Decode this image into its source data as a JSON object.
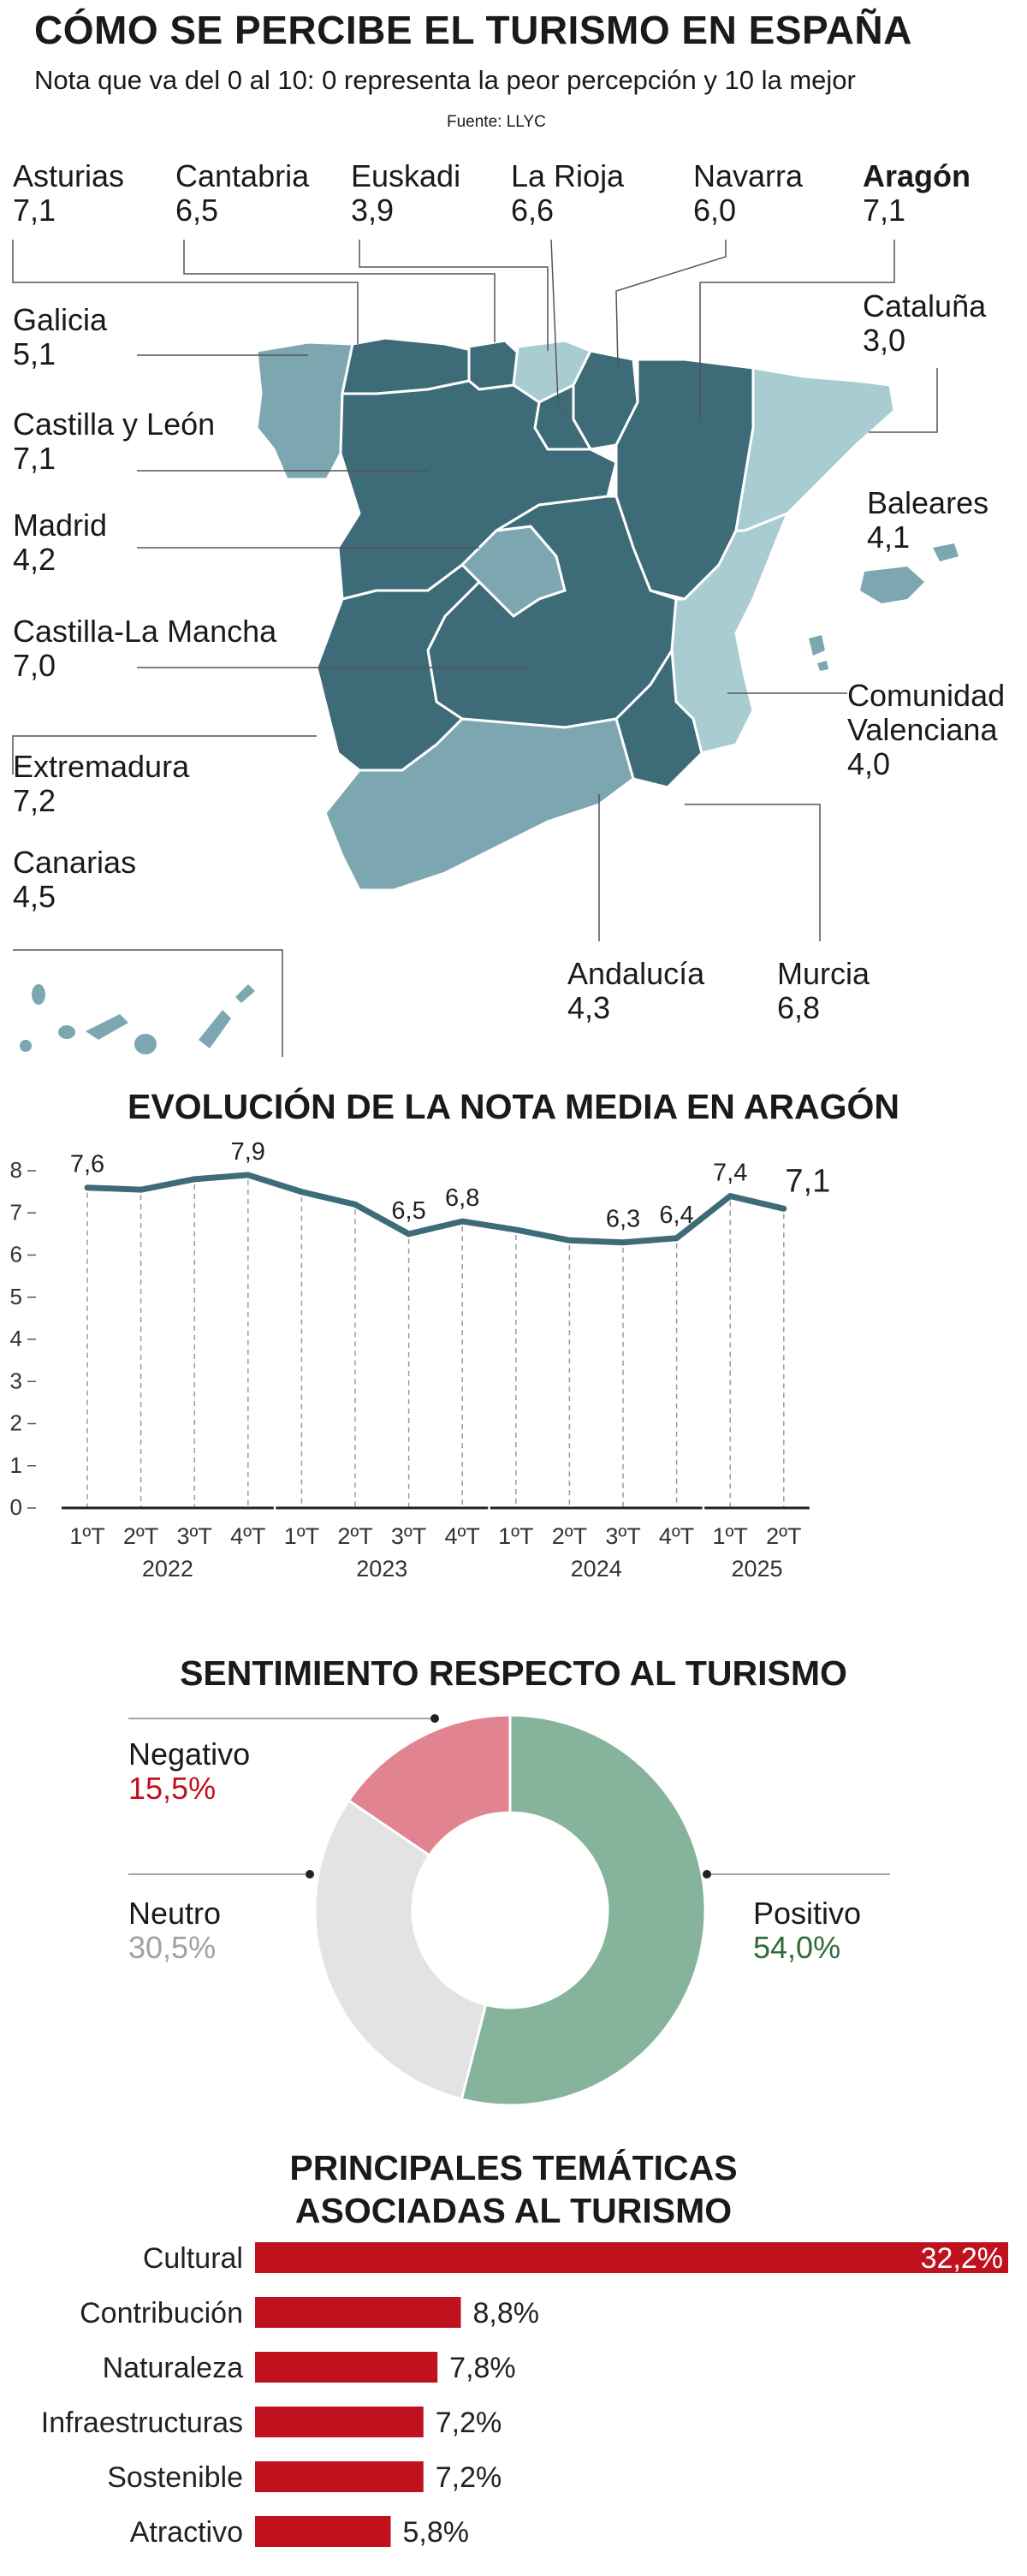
{
  "header": {
    "title": "CÓMO SE PERCIBE EL TURISMO EN ESPAÑA",
    "subtitle": "Nota que va del 0 al 10: 0 representa la peor percepción y 10 la mejor",
    "source": "Fuente: LLYC"
  },
  "colors": {
    "dark_teal": "#3d6b78",
    "mid_teal": "#7ca7b1",
    "light_teal": "#a9ccd3",
    "line": "#3d6b78",
    "positive": "#86b39b",
    "neutral": "#e3e3e6",
    "negative": "#e28390",
    "bar": "#c0111f",
    "positive_text": "#2f6b3a",
    "neutral_text": "#a2a2a2",
    "negative_text": "#c0111f"
  },
  "map": {
    "regions": [
      {
        "name": "Asturias",
        "value": "7,1"
      },
      {
        "name": "Cantabria",
        "value": "6,5"
      },
      {
        "name": "Euskadi",
        "value": "3,9"
      },
      {
        "name": "La Rioja",
        "value": "6,6"
      },
      {
        "name": "Navarra",
        "value": "6,0"
      },
      {
        "name": "Aragón",
        "value": "7,1"
      },
      {
        "name": "Galicia",
        "value": "5,1"
      },
      {
        "name": "Cataluña",
        "value": "3,0"
      },
      {
        "name": "Castilla y León",
        "value": "7,1"
      },
      {
        "name": "Baleares",
        "value": "4,1"
      },
      {
        "name": "Madrid",
        "value": "4,2"
      },
      {
        "name": "Castilla-La Mancha",
        "value": "7,0"
      },
      {
        "name": "Comunidad Valenciana",
        "value": "4,0"
      },
      {
        "name": "Extremadura",
        "value": "7,2"
      },
      {
        "name": "Canarias",
        "value": "4,5"
      },
      {
        "name": "Andalucía",
        "value": "4,3"
      },
      {
        "name": "Murcia",
        "value": "6,8"
      }
    ]
  },
  "chart_data": [
    {
      "type": "line",
      "title": "EVOLUCIÓN DE LA NOTA MEDIA EN ARAGÓN",
      "x": [
        "1ºT",
        "2ºT",
        "3ºT",
        "4ºT",
        "1ºT",
        "2ºT",
        "3ºT",
        "4ºT",
        "1ºT",
        "2ºT",
        "3ºT",
        "4ºT",
        "1ºT",
        "2ºT"
      ],
      "groups": [
        {
          "label": "2022",
          "count": 4
        },
        {
          "label": "2023",
          "count": 4
        },
        {
          "label": "2024",
          "count": 4
        },
        {
          "label": "2025",
          "count": 2
        }
      ],
      "series": [
        {
          "name": "Aragón",
          "values": [
            7.6,
            7.55,
            7.8,
            7.9,
            7.5,
            7.2,
            6.5,
            6.8,
            6.6,
            6.35,
            6.3,
            6.4,
            7.4,
            7.1
          ]
        }
      ],
      "data_labels": [
        {
          "index": 0,
          "text": "7,6"
        },
        {
          "index": 3,
          "text": "7,9"
        },
        {
          "index": 6,
          "text": "6,5"
        },
        {
          "index": 7,
          "text": "6,8"
        },
        {
          "index": 10,
          "text": "6,3"
        },
        {
          "index": 11,
          "text": "6,4"
        },
        {
          "index": 12,
          "text": "7,4"
        },
        {
          "index": 13,
          "text": "7,1"
        }
      ],
      "ylim": [
        0,
        8
      ],
      "yticks": [
        "0",
        "1",
        "2",
        "3",
        "4",
        "5",
        "6",
        "7",
        "8"
      ]
    },
    {
      "type": "pie",
      "title": "SENTIMIENTO RESPECTO AL TURISMO",
      "slices": [
        {
          "label": "Positivo",
          "value": 54.0,
          "text": "54,0%"
        },
        {
          "label": "Neutro",
          "value": 30.5,
          "text": "30,5%"
        },
        {
          "label": "Negativo",
          "value": 15.5,
          "text": "15,5%"
        }
      ]
    },
    {
      "type": "bar",
      "title_lines": [
        "PRINCIPALES TEMÁTICAS",
        "ASOCIADAS AL TURISMO"
      ],
      "categories": [
        "Cultural",
        "Contribución",
        "Naturaleza",
        "Infraestructuras",
        "Sostenible",
        "Atractivo"
      ],
      "values": [
        32.2,
        8.8,
        7.8,
        7.2,
        7.2,
        5.8
      ],
      "labels": [
        "32,2%",
        "8,8%",
        "7,8%",
        "7,2%",
        "7,2%",
        "5,8%"
      ]
    }
  ]
}
